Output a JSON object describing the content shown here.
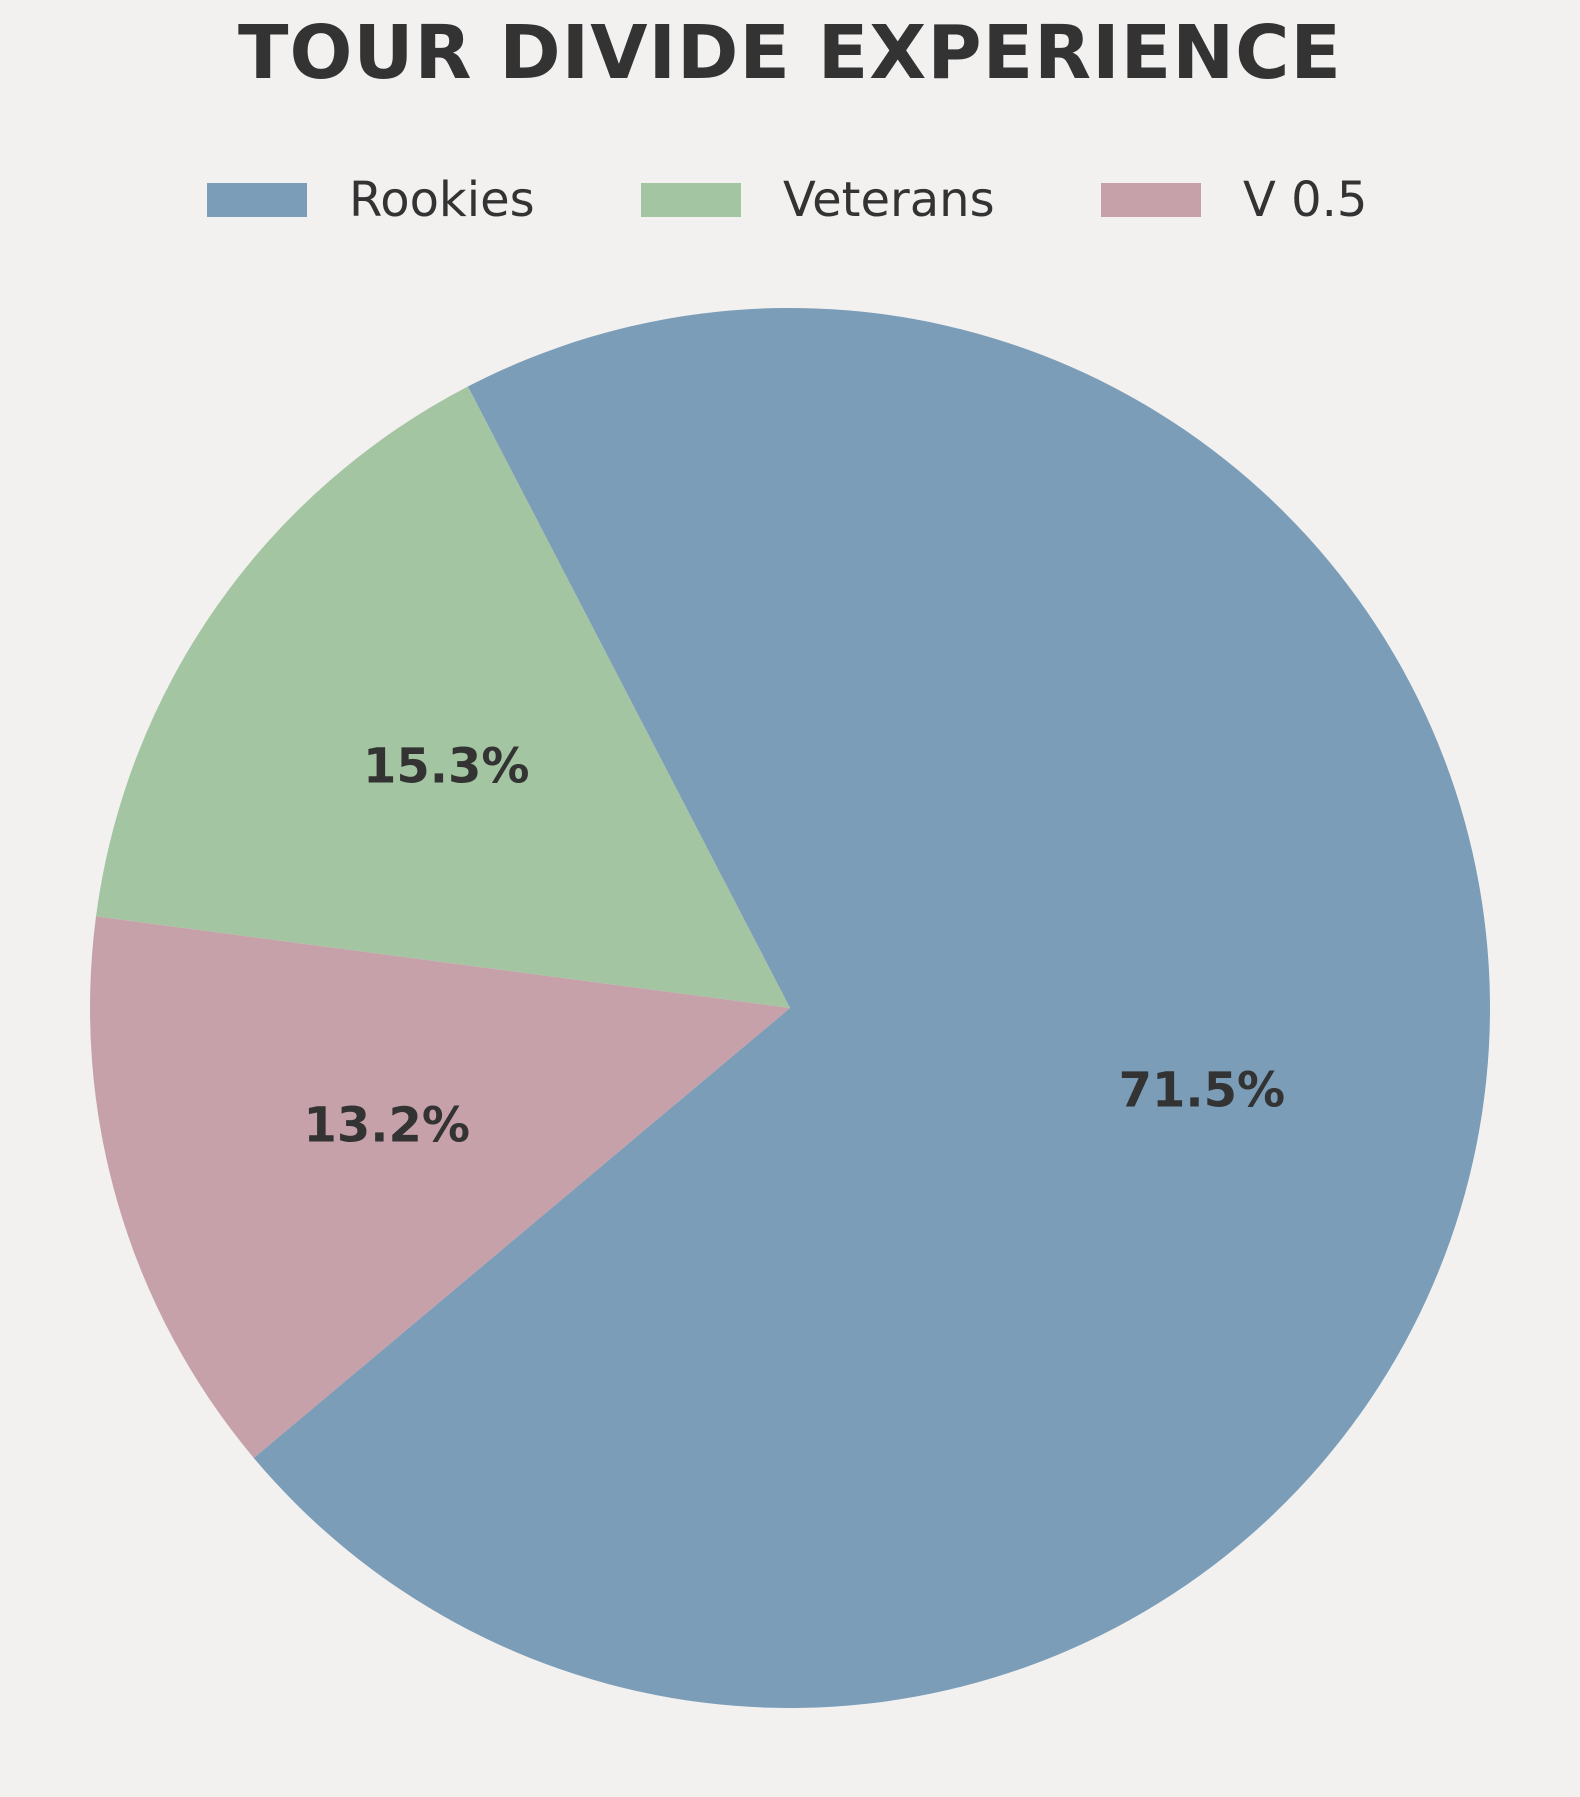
{
  "chart_data": {
    "type": "pie",
    "title": "TOUR DIVIDE EXPERIENCE",
    "categories": [
      "Rookies",
      "Veterans",
      "V 0.5"
    ],
    "values": [
      71.5,
      15.3,
      13.2
    ],
    "labels": [
      "71.5%",
      "15.3%",
      "13.2%"
    ],
    "colors": [
      "#7b9db8",
      "#a4c5a2",
      "#c6a1aa"
    ],
    "legend_position": "top-center",
    "start_angle_deg": 220,
    "direction": "counterclockwise"
  }
}
